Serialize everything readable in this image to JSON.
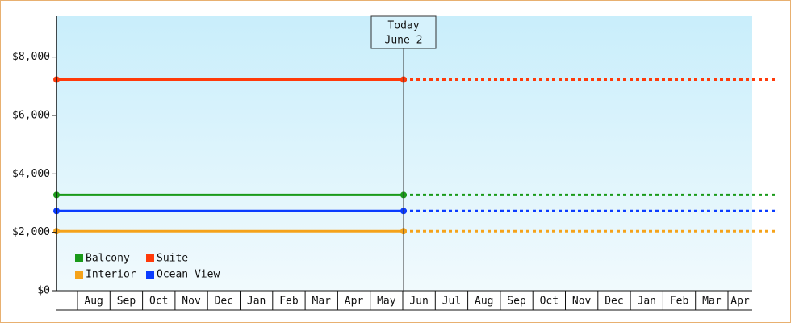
{
  "chart_data": {
    "type": "line",
    "annotation": {
      "title": "Today",
      "date": "June 2"
    },
    "categories": [
      null,
      "Aug",
      "Sep",
      "Oct",
      "Nov",
      "Dec",
      "Jan",
      "Feb",
      "Mar",
      "Apr",
      "May",
      "Jun",
      "Jul",
      "Aug",
      "Sep",
      "Oct",
      "Nov",
      "Dec",
      "Jan",
      "Feb",
      "Mar",
      "Apr"
    ],
    "ylim": [
      0,
      9400
    ],
    "yticks": [
      {
        "value": 0,
        "label": "$0"
      },
      {
        "value": 2000,
        "label": "$2,000"
      },
      {
        "value": 4000,
        "label": "$4,000"
      },
      {
        "value": 6000,
        "label": "$6,000"
      },
      {
        "value": 8000,
        "label": "$8,000"
      }
    ],
    "legend": "lower left",
    "series": [
      {
        "name": "Balcony",
        "color": "#1a9a1a",
        "value": 3280
      },
      {
        "name": "Suite",
        "color": "#ff3a0a",
        "value": 7230
      },
      {
        "name": "Interior",
        "color": "#f5a31a",
        "value": 2040
      },
      {
        "name": "Ocean View",
        "color": "#0a3cff",
        "value": 2730
      }
    ]
  }
}
